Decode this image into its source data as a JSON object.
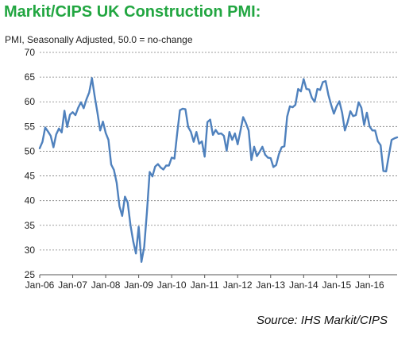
{
  "header": {
    "title": "Markit/CIPS UK Construction PMI:",
    "subtitle": "PMI, Seasonally Adjusted, 50.0 = no-change"
  },
  "footer": {
    "source": "Source: IHS Markit/CIPS"
  },
  "colors": {
    "title": "#22a641",
    "line": "#4f81bd",
    "grid": "#7f7f7f"
  },
  "chart_data": {
    "type": "line",
    "title": "Markit/CIPS UK Construction PMI:",
    "subtitle": "PMI, Seasonally Adjusted, 50.0 = no-change",
    "xlabel": "",
    "ylabel": "",
    "ylim": [
      25,
      70
    ],
    "yticks": [
      25,
      30,
      35,
      40,
      45,
      50,
      55,
      60,
      65,
      70
    ],
    "xlim": [
      "2006-01",
      "2016-11"
    ],
    "xticks": [
      "Jan-06",
      "Jan-07",
      "Jan-08",
      "Jan-09",
      "Jan-10",
      "Jan-11",
      "Jan-12",
      "Jan-13",
      "Jan-14",
      "Jan-15",
      "Jan-16"
    ],
    "grid": "horizontal-dashed",
    "legend": "none",
    "series": [
      {
        "x": [
          "2006-01",
          "2006-02",
          "2006-03",
          "2006-04",
          "2006-05",
          "2006-06",
          "2006-07",
          "2006-08",
          "2006-09",
          "2006-10",
          "2006-11",
          "2006-12",
          "2007-01",
          "2007-02",
          "2007-03",
          "2007-04",
          "2007-05",
          "2007-06",
          "2007-07",
          "2007-08",
          "2007-09",
          "2007-10",
          "2007-11",
          "2007-12",
          "2008-01",
          "2008-02",
          "2008-03",
          "2008-04",
          "2008-05",
          "2008-06",
          "2008-07",
          "2008-08",
          "2008-09",
          "2008-10",
          "2008-11",
          "2008-12",
          "2009-01",
          "2009-02",
          "2009-03",
          "2009-04",
          "2009-05",
          "2009-06",
          "2009-07",
          "2009-08",
          "2009-09",
          "2009-10",
          "2009-11",
          "2009-12",
          "2010-01",
          "2010-02",
          "2010-03",
          "2010-04",
          "2010-05",
          "2010-06",
          "2010-07",
          "2010-08",
          "2010-09",
          "2010-10",
          "2010-11",
          "2010-12",
          "2011-01",
          "2011-02",
          "2011-03",
          "2011-04",
          "2011-05",
          "2011-06",
          "2011-07",
          "2011-08",
          "2011-09",
          "2011-10",
          "2011-11",
          "2011-12",
          "2012-01",
          "2012-02",
          "2012-03",
          "2012-04",
          "2012-05",
          "2012-06",
          "2012-07",
          "2012-08",
          "2012-09",
          "2012-10",
          "2012-11",
          "2012-12",
          "2013-01",
          "2013-02",
          "2013-03",
          "2013-04",
          "2013-05",
          "2013-06",
          "2013-07",
          "2013-08",
          "2013-09",
          "2013-10",
          "2013-11",
          "2013-12",
          "2014-01",
          "2014-02",
          "2014-03",
          "2014-04",
          "2014-05",
          "2014-06",
          "2014-07",
          "2014-08",
          "2014-09",
          "2014-10",
          "2014-11",
          "2014-12",
          "2015-01",
          "2015-02",
          "2015-03",
          "2015-04",
          "2015-05",
          "2015-06",
          "2015-07",
          "2015-08",
          "2015-09",
          "2015-10",
          "2015-11",
          "2015-12",
          "2016-01",
          "2016-02",
          "2016-03",
          "2016-04",
          "2016-05",
          "2016-06",
          "2016-07",
          "2016-08",
          "2016-09",
          "2016-10",
          "2016-11"
        ],
        "values": [
          50.6,
          51.9,
          54.8,
          54.0,
          53.1,
          50.8,
          53.4,
          54.6,
          53.8,
          58.2,
          54.9,
          57.4,
          57.9,
          57.3,
          58.8,
          59.9,
          58.7,
          60.5,
          61.9,
          64.8,
          61.1,
          57.8,
          54.2,
          56.0,
          53.7,
          52.3,
          47.3,
          46.2,
          43.6,
          38.9,
          36.9,
          40.8,
          39.6,
          35.1,
          31.8,
          29.3,
          34.7,
          27.6,
          30.6,
          37.7,
          45.8,
          44.9,
          46.9,
          47.4,
          46.7,
          46.3,
          47.1,
          47.1,
          48.7,
          48.5,
          53.6,
          58.3,
          58.6,
          58.5,
          54.9,
          53.9,
          51.9,
          53.9,
          51.5,
          52.0,
          48.9,
          55.9,
          56.4,
          53.3,
          54.3,
          53.5,
          53.6,
          53.1,
          50.1,
          53.9,
          52.3,
          53.6,
          51.4,
          54.1,
          56.9,
          55.7,
          54.2,
          48.2,
          50.9,
          49.0,
          49.9,
          50.9,
          49.3,
          48.7,
          48.6,
          46.8,
          47.2,
          49.4,
          50.8,
          51.0,
          57.0,
          59.1,
          58.9,
          59.4,
          62.6,
          62.1,
          64.6,
          62.6,
          62.5,
          60.8,
          60.0,
          62.6,
          62.4,
          64.0,
          64.2,
          61.4,
          59.4,
          57.6,
          59.1,
          60.1,
          57.8,
          54.2,
          55.9,
          58.1,
          57.1,
          57.3,
          59.9,
          58.8,
          55.3,
          57.8,
          55.0,
          54.2,
          54.2,
          52.0,
          51.2,
          46.0,
          45.9,
          49.2,
          52.3,
          52.6,
          52.8
        ]
      }
    ]
  }
}
